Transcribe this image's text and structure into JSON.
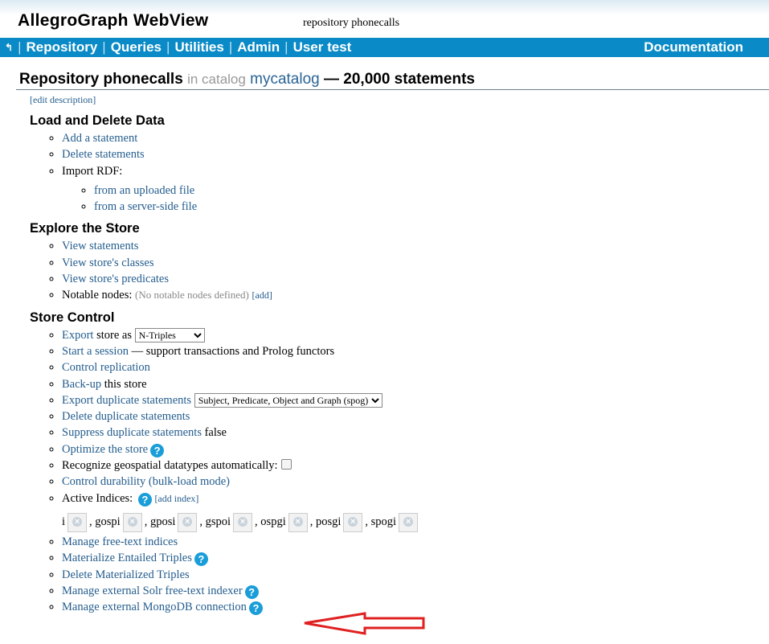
{
  "header": {
    "app_title": "AllegroGraph WebView",
    "repository_label": "repository phonecalls"
  },
  "nav": {
    "back_icon": "↰",
    "items": [
      "Repository",
      "Queries",
      "Utilities",
      "Admin",
      "User test"
    ],
    "documentation": "Documentation"
  },
  "title": {
    "main": "Repository phonecalls",
    "in_catalog": "in catalog",
    "catalog": "mycatalog",
    "statements": "— 20,000 statements"
  },
  "edit_description": "[edit description]",
  "load": {
    "heading": "Load and Delete Data",
    "add": "Add a statement",
    "delete": "Delete statements",
    "import": "Import RDF:",
    "uploaded": "from an uploaded file",
    "server": "from a server-side file"
  },
  "explore": {
    "heading": "Explore the Store",
    "statements": "View statements",
    "classes": "View store's classes",
    "predicates": "View store's predicates",
    "notable": "Notable nodes:",
    "notable_none": "(No notable nodes defined)",
    "notable_add": "[add]"
  },
  "control": {
    "heading": "Store Control",
    "export": "Export",
    "export_suffix": "store as",
    "export_format": "N-Triples",
    "session": "Start a session",
    "session_suffix": "— support transactions and Prolog functors",
    "replication": "Control replication",
    "backup": "Back-up",
    "backup_suffix": "this store",
    "export_dup": "Export duplicate statements",
    "export_dup_option": "Subject, Predicate, Object and Graph (spog)",
    "delete_dup": "Delete duplicate statements",
    "suppress_dup": "Suppress duplicate statements",
    "suppress_value": "false",
    "optimize": "Optimize the store",
    "geospatial": "Recognize geospatial datatypes automatically:",
    "durability": "Control durability (bulk-load mode)",
    "indices": "Active Indices:",
    "add_index": "[add index]",
    "index_list": [
      "i",
      "gospi",
      "gposi",
      "gspoi",
      "ospgi",
      "posgi",
      "spogi"
    ],
    "freetext": "Manage free-text indices",
    "materialize": "Materialize Entailed Triples",
    "delete_materialized": "Delete Materialized Triples",
    "solr": "Manage external Solr free-text indexer",
    "mongo": "Manage external MongoDB connection"
  },
  "colors": {
    "nav": "#0a8ac6",
    "link": "#245d8e",
    "help": "#1a9ed9",
    "arrow": "#e02020"
  }
}
